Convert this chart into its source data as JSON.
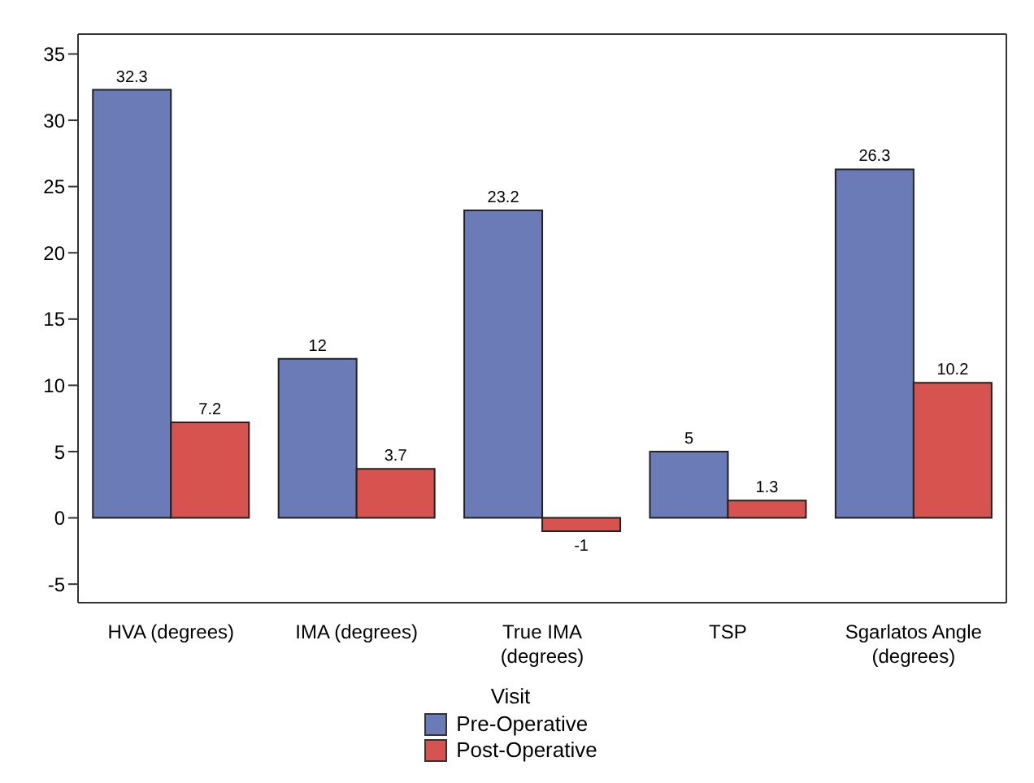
{
  "chart_data": {
    "type": "bar",
    "categories": [
      "HVA (degrees)",
      "IMA (degrees)",
      "True IMA (degrees)",
      "TSP",
      "Sgarlatos Angle (degrees)"
    ],
    "series": [
      {
        "name": "Pre-Operative",
        "color": "#6a7bb8",
        "values": [
          32.3,
          12,
          23.2,
          5,
          26.3
        ]
      },
      {
        "name": "Post-Operative",
        "color": "#d6534f",
        "values": [
          7.2,
          3.7,
          -1,
          1.3,
          10.2
        ]
      }
    ],
    "ylim": [
      -6.4,
      36.5
    ],
    "yticks": [
      -5,
      0,
      5,
      10,
      15,
      20,
      25,
      30,
      35
    ],
    "grid": false,
    "legend": "bottom",
    "legend_title": "Visit",
    "data_labels": true
  }
}
